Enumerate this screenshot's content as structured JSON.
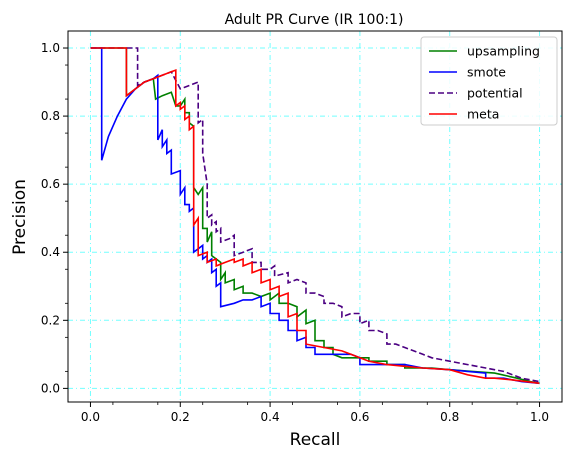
{
  "chart_data": {
    "type": "line",
    "title": "Adult PR Curve (IR 100:1)",
    "xlabel": "Recall",
    "ylabel": "Precision",
    "xlim": [
      -0.05,
      1.05
    ],
    "ylim": [
      -0.04,
      1.05
    ],
    "xticks": [
      0.0,
      0.2,
      0.4,
      0.6,
      0.8,
      1.0
    ],
    "xtick_labels": [
      "0.0",
      "0.2",
      "0.4",
      "0.6",
      "0.8",
      "1.0"
    ],
    "yticks": [
      0.0,
      0.2,
      0.4,
      0.6,
      0.8,
      1.0
    ],
    "ytick_labels": [
      "0.0",
      "0.2",
      "0.4",
      "0.6",
      "0.8",
      "1.0"
    ],
    "grid": true,
    "grid_color": "#00ffff",
    "legend_position": "top-right",
    "series": [
      {
        "name": "upsampling",
        "color": "#008000",
        "dash": "solid",
        "points": [
          [
            0.0,
            1.0
          ],
          [
            0.08,
            1.0
          ],
          [
            0.08,
            0.86
          ],
          [
            0.1,
            0.88
          ],
          [
            0.12,
            0.9
          ],
          [
            0.14,
            0.91
          ],
          [
            0.145,
            0.85
          ],
          [
            0.16,
            0.86
          ],
          [
            0.18,
            0.87
          ],
          [
            0.19,
            0.83
          ],
          [
            0.2,
            0.83
          ],
          [
            0.21,
            0.85
          ],
          [
            0.21,
            0.81
          ],
          [
            0.22,
            0.81
          ],
          [
            0.22,
            0.78
          ],
          [
            0.23,
            0.77
          ],
          [
            0.23,
            0.59
          ],
          [
            0.24,
            0.57
          ],
          [
            0.25,
            0.59
          ],
          [
            0.25,
            0.47
          ],
          [
            0.26,
            0.47
          ],
          [
            0.26,
            0.43
          ],
          [
            0.27,
            0.46
          ],
          [
            0.27,
            0.39
          ],
          [
            0.28,
            0.38
          ],
          [
            0.29,
            0.37
          ],
          [
            0.29,
            0.32
          ],
          [
            0.3,
            0.34
          ],
          [
            0.3,
            0.31
          ],
          [
            0.32,
            0.32
          ],
          [
            0.32,
            0.29
          ],
          [
            0.34,
            0.3
          ],
          [
            0.34,
            0.28
          ],
          [
            0.36,
            0.28
          ],
          [
            0.38,
            0.27
          ],
          [
            0.4,
            0.28
          ],
          [
            0.4,
            0.26
          ],
          [
            0.42,
            0.28
          ],
          [
            0.42,
            0.25
          ],
          [
            0.44,
            0.25
          ],
          [
            0.46,
            0.24
          ],
          [
            0.46,
            0.21
          ],
          [
            0.48,
            0.23
          ],
          [
            0.48,
            0.19
          ],
          [
            0.5,
            0.2
          ],
          [
            0.5,
            0.14
          ],
          [
            0.52,
            0.14
          ],
          [
            0.52,
            0.12
          ],
          [
            0.54,
            0.12
          ],
          [
            0.54,
            0.1
          ],
          [
            0.56,
            0.09
          ],
          [
            0.58,
            0.09
          ],
          [
            0.6,
            0.09
          ],
          [
            0.62,
            0.09
          ],
          [
            0.62,
            0.08
          ],
          [
            0.66,
            0.08
          ],
          [
            0.66,
            0.07
          ],
          [
            0.7,
            0.07
          ],
          [
            0.7,
            0.06
          ],
          [
            0.76,
            0.06
          ],
          [
            0.8,
            0.055
          ],
          [
            0.85,
            0.05
          ],
          [
            0.9,
            0.045
          ],
          [
            0.95,
            0.03
          ],
          [
            0.98,
            0.02
          ],
          [
            1.0,
            0.015
          ]
        ]
      },
      {
        "name": "smote",
        "color": "#0000ff",
        "dash": "solid",
        "points": [
          [
            0.0,
            1.0
          ],
          [
            0.025,
            1.0
          ],
          [
            0.025,
            0.67
          ],
          [
            0.04,
            0.74
          ],
          [
            0.06,
            0.8
          ],
          [
            0.08,
            0.85
          ],
          [
            0.1,
            0.88
          ],
          [
            0.12,
            0.9
          ],
          [
            0.14,
            0.91
          ],
          [
            0.15,
            0.92
          ],
          [
            0.15,
            0.73
          ],
          [
            0.16,
            0.76
          ],
          [
            0.16,
            0.71
          ],
          [
            0.17,
            0.73
          ],
          [
            0.17,
            0.69
          ],
          [
            0.18,
            0.7
          ],
          [
            0.18,
            0.63
          ],
          [
            0.2,
            0.64
          ],
          [
            0.2,
            0.57
          ],
          [
            0.21,
            0.59
          ],
          [
            0.21,
            0.54
          ],
          [
            0.22,
            0.54
          ],
          [
            0.22,
            0.52
          ],
          [
            0.23,
            0.53
          ],
          [
            0.23,
            0.4
          ],
          [
            0.24,
            0.41
          ],
          [
            0.25,
            0.42
          ],
          [
            0.25,
            0.38
          ],
          [
            0.26,
            0.39
          ],
          [
            0.26,
            0.37
          ],
          [
            0.27,
            0.38
          ],
          [
            0.27,
            0.34
          ],
          [
            0.28,
            0.35
          ],
          [
            0.28,
            0.3
          ],
          [
            0.29,
            0.31
          ],
          [
            0.29,
            0.24
          ],
          [
            0.32,
            0.25
          ],
          [
            0.34,
            0.26
          ],
          [
            0.36,
            0.26
          ],
          [
            0.38,
            0.27
          ],
          [
            0.38,
            0.24
          ],
          [
            0.4,
            0.25
          ],
          [
            0.4,
            0.22
          ],
          [
            0.42,
            0.22
          ],
          [
            0.42,
            0.2
          ],
          [
            0.44,
            0.2
          ],
          [
            0.44,
            0.17
          ],
          [
            0.46,
            0.17
          ],
          [
            0.46,
            0.14
          ],
          [
            0.48,
            0.15
          ],
          [
            0.48,
            0.12
          ],
          [
            0.5,
            0.12
          ],
          [
            0.5,
            0.1
          ],
          [
            0.52,
            0.1
          ],
          [
            0.55,
            0.1
          ],
          [
            0.58,
            0.1
          ],
          [
            0.6,
            0.09
          ],
          [
            0.6,
            0.07
          ],
          [
            0.66,
            0.07
          ],
          [
            0.7,
            0.07
          ],
          [
            0.74,
            0.06
          ],
          [
            0.8,
            0.055
          ],
          [
            0.84,
            0.05
          ],
          [
            0.88,
            0.045
          ],
          [
            0.88,
            0.03
          ],
          [
            0.92,
            0.03
          ],
          [
            0.96,
            0.02
          ],
          [
            1.0,
            0.015
          ]
        ]
      },
      {
        "name": "potential",
        "color": "#4b0082",
        "dash": "dashed",
        "points": [
          [
            0.0,
            1.0
          ],
          [
            0.1,
            1.0
          ],
          [
            0.105,
            1.0
          ],
          [
            0.105,
            0.89
          ],
          [
            0.12,
            0.9
          ],
          [
            0.14,
            0.91
          ],
          [
            0.16,
            0.92
          ],
          [
            0.18,
            0.93
          ],
          [
            0.2,
            0.88
          ],
          [
            0.22,
            0.89
          ],
          [
            0.24,
            0.9
          ],
          [
            0.24,
            0.78
          ],
          [
            0.25,
            0.79
          ],
          [
            0.25,
            0.69
          ],
          [
            0.26,
            0.6
          ],
          [
            0.26,
            0.5
          ],
          [
            0.27,
            0.51
          ],
          [
            0.27,
            0.48
          ],
          [
            0.28,
            0.49
          ],
          [
            0.28,
            0.46
          ],
          [
            0.29,
            0.47
          ],
          [
            0.29,
            0.43
          ],
          [
            0.31,
            0.44
          ],
          [
            0.32,
            0.45
          ],
          [
            0.32,
            0.39
          ],
          [
            0.34,
            0.4
          ],
          [
            0.36,
            0.41
          ],
          [
            0.36,
            0.37
          ],
          [
            0.38,
            0.37
          ],
          [
            0.38,
            0.35
          ],
          [
            0.4,
            0.35
          ],
          [
            0.41,
            0.36
          ],
          [
            0.41,
            0.33
          ],
          [
            0.44,
            0.34
          ],
          [
            0.44,
            0.31
          ],
          [
            0.46,
            0.32
          ],
          [
            0.48,
            0.31
          ],
          [
            0.48,
            0.28
          ],
          [
            0.5,
            0.28
          ],
          [
            0.52,
            0.27
          ],
          [
            0.52,
            0.25
          ],
          [
            0.54,
            0.25
          ],
          [
            0.56,
            0.24
          ],
          [
            0.56,
            0.21
          ],
          [
            0.58,
            0.22
          ],
          [
            0.6,
            0.22
          ],
          [
            0.6,
            0.19
          ],
          [
            0.62,
            0.2
          ],
          [
            0.62,
            0.17
          ],
          [
            0.64,
            0.17
          ],
          [
            0.66,
            0.16
          ],
          [
            0.66,
            0.13
          ],
          [
            0.68,
            0.13
          ],
          [
            0.7,
            0.12
          ],
          [
            0.72,
            0.11
          ],
          [
            0.74,
            0.1
          ],
          [
            0.76,
            0.09
          ],
          [
            0.8,
            0.08
          ],
          [
            0.84,
            0.07
          ],
          [
            0.88,
            0.06
          ],
          [
            0.92,
            0.05
          ],
          [
            0.96,
            0.03
          ],
          [
            1.0,
            0.02
          ]
        ]
      },
      {
        "name": "meta",
        "color": "#ff0000",
        "dash": "solid",
        "points": [
          [
            0.0,
            1.0
          ],
          [
            0.08,
            1.0
          ],
          [
            0.08,
            0.86
          ],
          [
            0.1,
            0.88
          ],
          [
            0.12,
            0.9
          ],
          [
            0.14,
            0.91
          ],
          [
            0.16,
            0.92
          ],
          [
            0.18,
            0.93
          ],
          [
            0.19,
            0.935
          ],
          [
            0.19,
            0.83
          ],
          [
            0.2,
            0.84
          ],
          [
            0.2,
            0.82
          ],
          [
            0.21,
            0.83
          ],
          [
            0.21,
            0.79
          ],
          [
            0.22,
            0.8
          ],
          [
            0.22,
            0.76
          ],
          [
            0.23,
            0.77
          ],
          [
            0.23,
            0.48
          ],
          [
            0.24,
            0.5
          ],
          [
            0.24,
            0.39
          ],
          [
            0.26,
            0.4
          ],
          [
            0.26,
            0.37
          ],
          [
            0.28,
            0.38
          ],
          [
            0.28,
            0.36
          ],
          [
            0.3,
            0.37
          ],
          [
            0.32,
            0.38
          ],
          [
            0.32,
            0.37
          ],
          [
            0.34,
            0.38
          ],
          [
            0.34,
            0.36
          ],
          [
            0.36,
            0.37
          ],
          [
            0.36,
            0.34
          ],
          [
            0.38,
            0.35
          ],
          [
            0.38,
            0.31
          ],
          [
            0.4,
            0.32
          ],
          [
            0.4,
            0.29
          ],
          [
            0.42,
            0.3
          ],
          [
            0.42,
            0.27
          ],
          [
            0.44,
            0.28
          ],
          [
            0.44,
            0.21
          ],
          [
            0.46,
            0.22
          ],
          [
            0.46,
            0.17
          ],
          [
            0.48,
            0.17
          ],
          [
            0.48,
            0.13
          ],
          [
            0.52,
            0.12
          ],
          [
            0.56,
            0.11
          ],
          [
            0.58,
            0.1
          ],
          [
            0.6,
            0.09
          ],
          [
            0.62,
            0.08
          ],
          [
            0.66,
            0.07
          ],
          [
            0.7,
            0.065
          ],
          [
            0.74,
            0.06
          ],
          [
            0.8,
            0.055
          ],
          [
            0.84,
            0.04
          ],
          [
            0.88,
            0.03
          ],
          [
            0.9,
            0.03
          ],
          [
            0.94,
            0.025
          ],
          [
            0.97,
            0.02
          ],
          [
            1.0,
            0.015
          ]
        ]
      }
    ]
  }
}
